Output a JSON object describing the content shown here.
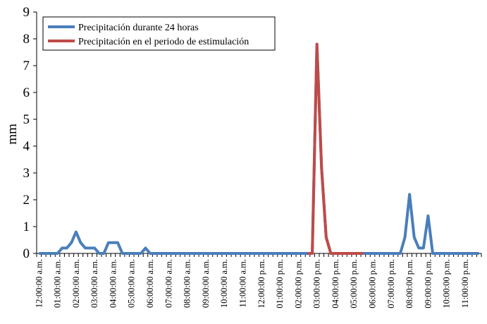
{
  "chart_data": {
    "type": "line",
    "title": "",
    "xlabel": "",
    "ylabel": "mm",
    "ylim": [
      0,
      9
    ],
    "yticks": [
      "0",
      "1",
      "2",
      "3",
      "4",
      "5",
      "6",
      "7",
      "8",
      "9"
    ],
    "grid": false,
    "legend_position": "top-left",
    "x": [
      "12:00:00 a.m.",
      "12:15:00 a.m.",
      "12:30:00 a.m.",
      "12:45:00 a.m.",
      "01:00:00 a.m.",
      "01:15:00 a.m.",
      "01:30:00 a.m.",
      "01:45:00 a.m.",
      "02:00:00 a.m.",
      "02:15:00 a.m.",
      "02:30:00 a.m.",
      "02:45:00 a.m.",
      "03:00:00 a.m.",
      "03:15:00 a.m.",
      "03:30:00 a.m.",
      "03:45:00 a.m.",
      "04:00:00 a.m.",
      "04:15:00 a.m.",
      "04:30:00 a.m.",
      "04:45:00 a.m.",
      "05:00:00 a.m.",
      "05:15:00 a.m.",
      "05:30:00 a.m.",
      "05:45:00 a.m.",
      "06:00:00 a.m.",
      "06:15:00 a.m.",
      "06:30:00 a.m.",
      "06:45:00 a.m.",
      "07:00:00 a.m.",
      "07:15:00 a.m.",
      "07:30:00 a.m.",
      "07:45:00 a.m.",
      "08:00:00 a.m.",
      "08:15:00 a.m.",
      "08:30:00 a.m.",
      "08:45:00 a.m.",
      "09:00:00 a.m.",
      "09:15:00 a.m.",
      "09:30:00 a.m.",
      "09:45:00 a.m.",
      "10:00:00 a.m.",
      "10:15:00 a.m.",
      "10:30:00 a.m.",
      "10:45:00 a.m.",
      "11:00:00 a.m.",
      "11:15:00 a.m.",
      "11:30:00 a.m.",
      "11:45:00 a.m.",
      "12:00:00 p.m.",
      "12:15:00 p.m.",
      "12:30:00 p.m.",
      "12:45:00 p.m.",
      "01:00:00 p.m.",
      "01:15:00 p.m.",
      "01:30:00 p.m.",
      "01:45:00 p.m.",
      "02:00:00 p.m.",
      "02:15:00 p.m.",
      "02:30:00 p.m.",
      "02:45:00 p.m.",
      "03:00:00 p.m.",
      "03:15:00 p.m.",
      "03:30:00 p.m.",
      "03:45:00 p.m.",
      "04:00:00 p.m.",
      "04:15:00 p.m.",
      "04:30:00 p.m.",
      "04:45:00 p.m.",
      "05:00:00 p.m.",
      "05:15:00 p.m.",
      "05:30:00 p.m.",
      "05:45:00 p.m.",
      "06:00:00 p.m.",
      "06:15:00 p.m.",
      "06:30:00 p.m.",
      "06:45:00 p.m.",
      "07:00:00 p.m.",
      "07:15:00 p.m.",
      "07:30:00 p.m.",
      "07:45:00 p.m.",
      "08:00:00 p.m.",
      "08:15:00 p.m.",
      "08:30:00 p.m.",
      "08:45:00 p.m.",
      "09:00:00 p.m.",
      "09:15:00 p.m.",
      "09:30:00 p.m.",
      "09:45:00 p.m.",
      "10:00:00 p.m.",
      "10:15:00 p.m.",
      "10:30:00 p.m.",
      "10:45:00 p.m.",
      "11:00:00 p.m.",
      "11:15:00 p.m.",
      "11:30:00 p.m.",
      "11:45:00 p.m."
    ],
    "x_tick_labels": [
      "12:00:00 a.m.",
      "01:00:00 a.m.",
      "02:00:00 a.m.",
      "03:00:00 a.m.",
      "04:00:00 a.m.",
      "05:00:00 a.m.",
      "06:00:00 a.m.",
      "07:00:00 a.m.",
      "08:00:00 a.m.",
      "09:00:00 a.m.",
      "10:00:00 a.m.",
      "11:00:00 a.m.",
      "12:00:00 p.m.",
      "01:00:00 p.m.",
      "02:00:00 p.m.",
      "03:00:00 p.m.",
      "04:00:00 p.m.",
      "05:00:00 p.m.",
      "06:00:00 p.m.",
      "07:00:00 p.m.",
      "08:00:00 p.m.",
      "09:00:00 p.m.",
      "10:00:00 p.m.",
      "11:00:00 p.m."
    ],
    "series": [
      {
        "name": "Precipitación durante 24 horas",
        "color": "#4A7EBB",
        "values": [
          0,
          0,
          0,
          0,
          0,
          0.2,
          0.2,
          0.4,
          0.8,
          0.4,
          0.2,
          0.2,
          0.2,
          0,
          0,
          0.4,
          0.4,
          0.4,
          0,
          0,
          0,
          0,
          0,
          0.2,
          0,
          0,
          0,
          0,
          0,
          0,
          0,
          0,
          0,
          0,
          0,
          0,
          0,
          0,
          0,
          0,
          0,
          0,
          0,
          0,
          0,
          0,
          0,
          0,
          0,
          0,
          0,
          0,
          0,
          0,
          0,
          0,
          0,
          0,
          0,
          0,
          7.8,
          3.2,
          0.6,
          0,
          0,
          0,
          0,
          0,
          0,
          0,
          0,
          0,
          0,
          0,
          0,
          0,
          0,
          0,
          0,
          0.6,
          2.2,
          0.6,
          0.2,
          0.2,
          1.4,
          0,
          0,
          0,
          0,
          0,
          0,
          0,
          0,
          0,
          0,
          0
        ]
      },
      {
        "name": "Precipitación en el periodo de estimulación",
        "color": "#BE4B48",
        "values": [
          null,
          null,
          null,
          null,
          null,
          null,
          null,
          null,
          null,
          null,
          null,
          null,
          null,
          null,
          null,
          null,
          null,
          null,
          null,
          null,
          null,
          null,
          null,
          null,
          null,
          null,
          null,
          null,
          null,
          null,
          null,
          null,
          null,
          null,
          null,
          null,
          null,
          null,
          null,
          null,
          null,
          null,
          null,
          null,
          null,
          null,
          null,
          null,
          null,
          null,
          null,
          null,
          null,
          null,
          null,
          null,
          null,
          null,
          0,
          0,
          7.8,
          3.2,
          0.6,
          0,
          0,
          0,
          0,
          0,
          0,
          0,
          0,
          null,
          null,
          null,
          null,
          null,
          null,
          null,
          null,
          null,
          null,
          null,
          null,
          null,
          null,
          null,
          null,
          null,
          null,
          null,
          null,
          null,
          null,
          null,
          null,
          null
        ]
      }
    ]
  }
}
